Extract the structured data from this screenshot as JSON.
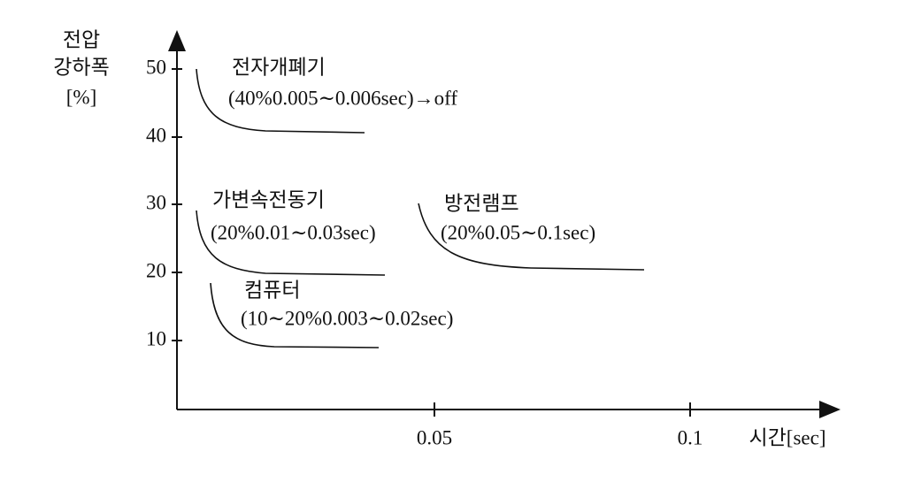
{
  "y_axis": {
    "label_lines": [
      "전압",
      "강하폭",
      "[%]"
    ],
    "ticks": [
      "10",
      "20",
      "30",
      "40",
      "50"
    ]
  },
  "x_axis": {
    "label": "시간[sec]",
    "ticks": [
      "0.05",
      "0.1"
    ]
  },
  "annotations": [
    {
      "name": "전자개폐기",
      "detail": "(40%0.005∼0.006sec)→off"
    },
    {
      "name": "가변속전동기",
      "detail": "(20%0.01∼0.03sec)"
    },
    {
      "name": "방전램프",
      "detail": "(20%0.05∼0.1sec)"
    },
    {
      "name": "컴퓨터",
      "detail": "(10∼20%0.003∼0.02sec)"
    }
  ]
}
